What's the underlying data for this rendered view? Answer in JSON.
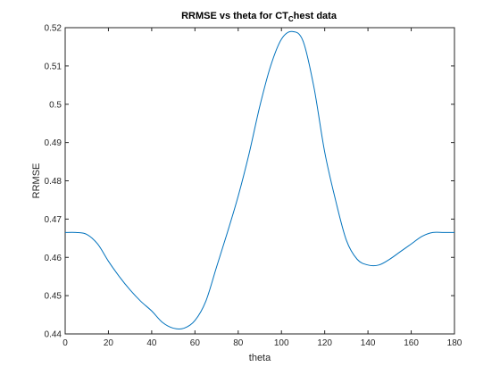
{
  "chart_data": {
    "type": "line",
    "title_parts": {
      "main": "RRMSE vs theta for CT",
      "subscript": "C",
      "rest": "hest data"
    },
    "xlabel": "theta",
    "ylabel": "RRMSE",
    "xlim": [
      0,
      180
    ],
    "ylim": [
      0.44,
      0.52
    ],
    "xticks": [
      "0",
      "20",
      "40",
      "60",
      "80",
      "100",
      "120",
      "140",
      "160",
      "180"
    ],
    "yticks": [
      "0.44",
      "0.45",
      "0.46",
      "0.47",
      "0.48",
      "0.49",
      "0.5",
      "0.51",
      "0.52"
    ],
    "grid": false,
    "line_color": "#0072BD",
    "series": [
      {
        "x": [
          0,
          5,
          10,
          15,
          20,
          25,
          30,
          35,
          40,
          45,
          50,
          55,
          60,
          65,
          70,
          75,
          80,
          85,
          90,
          95,
          100,
          105,
          110,
          115,
          120,
          125,
          130,
          135,
          140,
          145,
          150,
          155,
          160,
          165,
          170,
          175,
          180
        ],
        "values": [
          0.4665,
          0.4665,
          0.466,
          0.4635,
          0.459,
          0.455,
          0.4515,
          0.4485,
          0.446,
          0.443,
          0.4415,
          0.4415,
          0.4435,
          0.4485,
          0.4575,
          0.4665,
          0.476,
          0.487,
          0.4995,
          0.51,
          0.517,
          0.519,
          0.5165,
          0.5045,
          0.4875,
          0.475,
          0.4645,
          0.4595,
          0.458,
          0.458,
          0.4595,
          0.4615,
          0.4635,
          0.4655,
          0.4665,
          0.4665,
          0.4665
        ]
      }
    ]
  }
}
